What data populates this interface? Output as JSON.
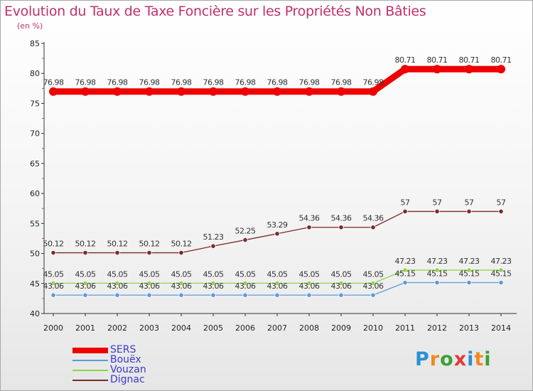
{
  "title": "Evolution du Taux de Taxe Foncière sur les Propriétés Non Bâties",
  "subtitle": "(en %)",
  "logo": "Proxiti",
  "chart_data": {
    "type": "line",
    "title": "Evolution du Taux de Taxe Foncière sur les Propriétés Non Bâties",
    "ylabel": "(en %)",
    "xlabel": "",
    "ylim": [
      40,
      85
    ],
    "yticks": [
      40,
      45,
      50,
      55,
      60,
      65,
      70,
      75,
      80,
      85
    ],
    "grid": false,
    "legend_position": "bottom-left",
    "categories": [
      "2000",
      "2001",
      "2002",
      "2003",
      "2004",
      "2005",
      "2006",
      "2007",
      "2008",
      "2009",
      "2010",
      "2011",
      "2012",
      "2013",
      "2014"
    ],
    "series": [
      {
        "name": "SERS",
        "color": "#ee0000",
        "values": [
          76.98,
          76.98,
          76.98,
          76.98,
          76.98,
          76.98,
          76.98,
          76.98,
          76.98,
          76.98,
          76.98,
          80.71,
          80.71,
          80.71,
          80.71
        ],
        "labels": [
          "76.98",
          "76.98",
          "76.98",
          "76.98",
          "76.98",
          "76.98",
          "76.98",
          "76.98",
          "76.98",
          "76.98",
          "76.98",
          "80.71",
          "80.71",
          "80.71",
          "80.71"
        ]
      },
      {
        "name": "Bouëx",
        "color": "#5b9bd5",
        "values": [
          43.06,
          43.06,
          43.06,
          43.06,
          43.06,
          43.06,
          43.06,
          43.06,
          43.06,
          43.06,
          43.06,
          45.15,
          45.15,
          45.15,
          45.15
        ],
        "labels": [
          "43.06",
          "43.06",
          "43.06",
          "43.06",
          "43.06",
          "43.06",
          "43.06",
          "43.06",
          "43.06",
          "43.06",
          "43.06",
          "45.15",
          "45.15",
          "45.15",
          "45.15"
        ]
      },
      {
        "name": "Vouzan",
        "color": "#8ed64a",
        "values": [
          45.05,
          45.05,
          45.05,
          45.05,
          45.05,
          45.05,
          45.05,
          45.05,
          45.05,
          45.05,
          45.05,
          47.23,
          47.23,
          47.23,
          47.23
        ],
        "labels": [
          "45.05",
          "45.05",
          "45.05",
          "45.05",
          "45.05",
          "45.05",
          "45.05",
          "45.05",
          "45.05",
          "45.05",
          "45.05",
          "47.23",
          "47.23",
          "47.23",
          "47.23"
        ]
      },
      {
        "name": "Dignac",
        "color": "#7a2a2a",
        "values": [
          50.12,
          50.12,
          50.12,
          50.12,
          50.12,
          51.23,
          52.25,
          53.29,
          54.36,
          54.36,
          54.36,
          57,
          57,
          57,
          57
        ],
        "labels": [
          "50.12",
          "50.12",
          "50.12",
          "50.12",
          "50.12",
          "51.23",
          "52.25",
          "53.29",
          "54.36",
          "54.36",
          "54.36",
          "57",
          "57",
          "57",
          "57"
        ]
      }
    ]
  }
}
